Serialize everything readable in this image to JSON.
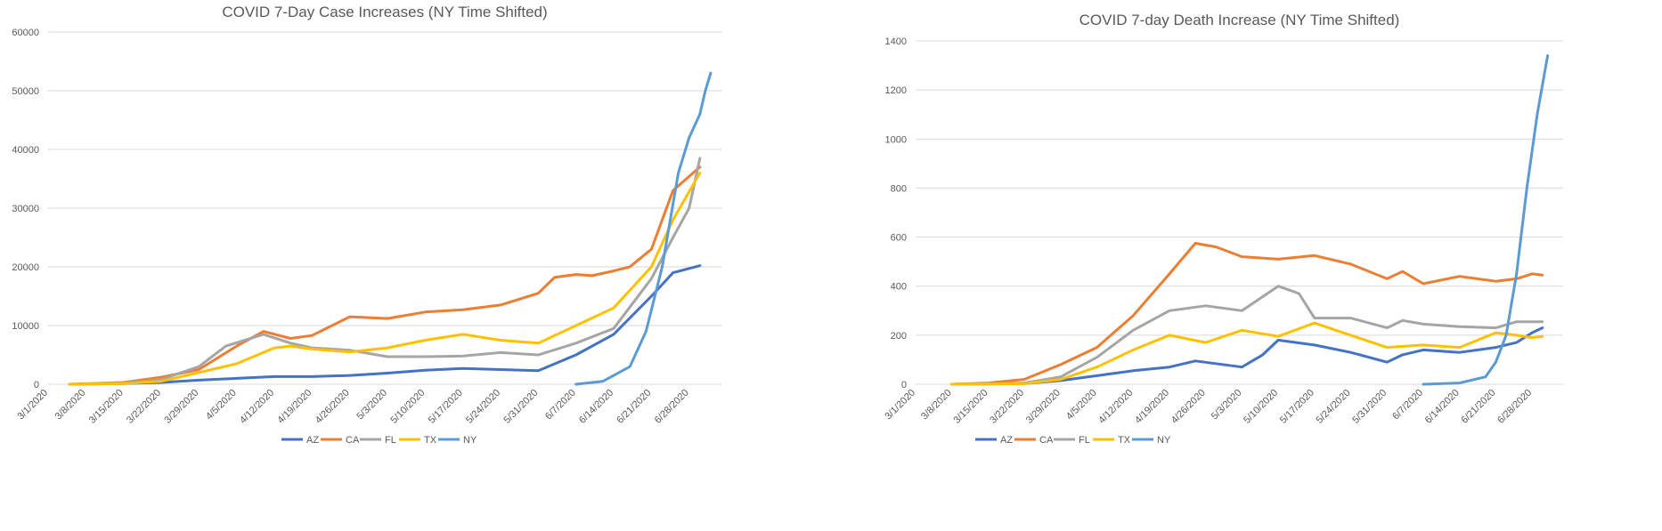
{
  "chart_data": [
    {
      "type": "line",
      "title": "COVID 7-Day Case Increases (NY Time Shifted)",
      "xlabel": "",
      "ylabel": "",
      "ylim": [
        0,
        60000
      ],
      "yticks": [
        0,
        10000,
        20000,
        30000,
        40000,
        50000,
        60000
      ],
      "x_tick_labels": [
        "3/1/2020",
        "3/8/2020",
        "3/15/2020",
        "3/22/2020",
        "3/29/2020",
        "4/5/2020",
        "4/12/2020",
        "4/19/2020",
        "4/26/2020",
        "5/3/2020",
        "5/10/2020",
        "5/17/2020",
        "5/24/2020",
        "5/31/2020",
        "6/7/2020",
        "6/14/2020",
        "6/21/2020",
        "6/28/2020"
      ],
      "grid": true,
      "legend": "bottom",
      "series": [
        {
          "name": "AZ",
          "color": "#4472C4",
          "points": [
            [
              "3/5/2020",
              0
            ],
            [
              "3/15/2020",
              100
            ],
            [
              "3/22/2020",
              300
            ],
            [
              "3/29/2020",
              700
            ],
            [
              "4/5/2020",
              1000
            ],
            [
              "4/12/2020",
              1300
            ],
            [
              "4/19/2020",
              1300
            ],
            [
              "4/26/2020",
              1500
            ],
            [
              "5/3/2020",
              1900
            ],
            [
              "5/10/2020",
              2400
            ],
            [
              "5/17/2020",
              2700
            ],
            [
              "5/24/2020",
              2500
            ],
            [
              "5/31/2020",
              2300
            ],
            [
              "6/7/2020",
              5000
            ],
            [
              "6/14/2020",
              8500
            ],
            [
              "6/21/2020",
              15000
            ],
            [
              "6/25/2020",
              19000
            ],
            [
              "6/30/2020",
              20200
            ]
          ]
        },
        {
          "name": "CA",
          "color": "#ED7D31",
          "points": [
            [
              "3/5/2020",
              0
            ],
            [
              "3/15/2020",
              300
            ],
            [
              "3/22/2020",
              1200
            ],
            [
              "3/29/2020",
              2500
            ],
            [
              "4/5/2020",
              6500
            ],
            [
              "4/10/2020",
              9000
            ],
            [
              "4/15/2020",
              7800
            ],
            [
              "4/19/2020",
              8300
            ],
            [
              "4/26/2020",
              11500
            ],
            [
              "5/3/2020",
              11200
            ],
            [
              "5/10/2020",
              12300
            ],
            [
              "5/17/2020",
              12700
            ],
            [
              "5/24/2020",
              13500
            ],
            [
              "5/31/2020",
              15500
            ],
            [
              "6/3/2020",
              18200
            ],
            [
              "6/7/2020",
              18700
            ],
            [
              "6/10/2020",
              18500
            ],
            [
              "6/14/2020",
              19300
            ],
            [
              "6/17/2020",
              20000
            ],
            [
              "6/21/2020",
              23000
            ],
            [
              "6/25/2020",
              33000
            ],
            [
              "6/30/2020",
              37000
            ]
          ]
        },
        {
          "name": "FL",
          "color": "#A5A5A5",
          "points": [
            [
              "3/5/2020",
              0
            ],
            [
              "3/15/2020",
              200
            ],
            [
              "3/22/2020",
              800
            ],
            [
              "3/29/2020",
              3000
            ],
            [
              "4/3/2020",
              6500
            ],
            [
              "4/10/2020",
              8500
            ],
            [
              "4/15/2020",
              7000
            ],
            [
              "4/19/2020",
              6200
            ],
            [
              "4/26/2020",
              5800
            ],
            [
              "5/3/2020",
              4700
            ],
            [
              "5/10/2020",
              4700
            ],
            [
              "5/17/2020",
              4800
            ],
            [
              "5/24/2020",
              5400
            ],
            [
              "5/31/2020",
              5000
            ],
            [
              "6/7/2020",
              7000
            ],
            [
              "6/14/2020",
              9500
            ],
            [
              "6/21/2020",
              18000
            ],
            [
              "6/25/2020",
              25000
            ],
            [
              "6/28/2020",
              30000
            ],
            [
              "6/30/2020",
              38500
            ]
          ]
        },
        {
          "name": "TX",
          "color": "#FFC000",
          "points": [
            [
              "3/5/2020",
              0
            ],
            [
              "3/15/2020",
              100
            ],
            [
              "3/22/2020",
              500
            ],
            [
              "3/29/2020",
              2000
            ],
            [
              "4/5/2020",
              3500
            ],
            [
              "4/12/2020",
              6200
            ],
            [
              "4/15/2020",
              6500
            ],
            [
              "4/19/2020",
              6000
            ],
            [
              "4/26/2020",
              5500
            ],
            [
              "5/3/2020",
              6200
            ],
            [
              "5/10/2020",
              7500
            ],
            [
              "5/17/2020",
              8500
            ],
            [
              "5/24/2020",
              7500
            ],
            [
              "5/31/2020",
              7000
            ],
            [
              "6/7/2020",
              10000
            ],
            [
              "6/14/2020",
              13000
            ],
            [
              "6/21/2020",
              20000
            ],
            [
              "6/25/2020",
              28000
            ],
            [
              "6/30/2020",
              36000
            ]
          ]
        },
        {
          "name": "NY",
          "color": "#5B9BD5",
          "points": [
            [
              "6/7/2020",
              0
            ],
            [
              "6/12/2020",
              500
            ],
            [
              "6/17/2020",
              3000
            ],
            [
              "6/20/2020",
              9000
            ],
            [
              "6/23/2020",
              20000
            ],
            [
              "6/26/2020",
              36000
            ],
            [
              "6/28/2020",
              42000
            ],
            [
              "6/30/2020",
              46000
            ],
            [
              "7/1/2020",
              50000
            ],
            [
              "7/2/2020",
              53000
            ]
          ]
        }
      ]
    },
    {
      "type": "line",
      "title": "COVID 7-day Death Increase (NY Time Shifted)",
      "xlabel": "",
      "ylabel": "",
      "ylim": [
        0,
        1400
      ],
      "yticks": [
        0,
        200,
        400,
        600,
        800,
        1000,
        1200,
        1400
      ],
      "x_tick_labels": [
        "3/1/2020",
        "3/8/2020",
        "3/15/2020",
        "3/22/2020",
        "3/29/2020",
        "4/5/2020",
        "4/12/2020",
        "4/19/2020",
        "4/26/2020",
        "5/3/2020",
        "5/10/2020",
        "5/17/2020",
        "5/24/2020",
        "5/31/2020",
        "6/7/2020",
        "6/14/2020",
        "6/21/2020",
        "6/28/2020"
      ],
      "grid": true,
      "legend": "bottom",
      "series": [
        {
          "name": "AZ",
          "color": "#4472C4",
          "points": [
            [
              "3/8/2020",
              0
            ],
            [
              "3/22/2020",
              3
            ],
            [
              "3/29/2020",
              15
            ],
            [
              "4/5/2020",
              35
            ],
            [
              "4/12/2020",
              55
            ],
            [
              "4/19/2020",
              70
            ],
            [
              "4/24/2020",
              95
            ],
            [
              "5/3/2020",
              70
            ],
            [
              "5/7/2020",
              120
            ],
            [
              "5/10/2020",
              180
            ],
            [
              "5/17/2020",
              160
            ],
            [
              "5/24/2020",
              130
            ],
            [
              "5/31/2020",
              90
            ],
            [
              "6/3/2020",
              120
            ],
            [
              "6/7/2020",
              140
            ],
            [
              "6/14/2020",
              130
            ],
            [
              "6/21/2020",
              150
            ],
            [
              "6/25/2020",
              170
            ],
            [
              "6/28/2020",
              210
            ],
            [
              "6/30/2020",
              230
            ]
          ]
        },
        {
          "name": "CA",
          "color": "#ED7D31",
          "points": [
            [
              "3/8/2020",
              0
            ],
            [
              "3/15/2020",
              5
            ],
            [
              "3/22/2020",
              20
            ],
            [
              "3/29/2020",
              80
            ],
            [
              "4/5/2020",
              150
            ],
            [
              "4/12/2020",
              280
            ],
            [
              "4/19/2020",
              450
            ],
            [
              "4/24/2020",
              575
            ],
            [
              "4/28/2020",
              560
            ],
            [
              "5/3/2020",
              520
            ],
            [
              "5/10/2020",
              510
            ],
            [
              "5/17/2020",
              525
            ],
            [
              "5/24/2020",
              490
            ],
            [
              "5/31/2020",
              430
            ],
            [
              "6/3/2020",
              460
            ],
            [
              "6/7/2020",
              410
            ],
            [
              "6/14/2020",
              440
            ],
            [
              "6/21/2020",
              420
            ],
            [
              "6/25/2020",
              430
            ],
            [
              "6/28/2020",
              450
            ],
            [
              "6/30/2020",
              445
            ]
          ]
        },
        {
          "name": "FL",
          "color": "#A5A5A5",
          "points": [
            [
              "3/8/2020",
              0
            ],
            [
              "3/22/2020",
              5
            ],
            [
              "3/29/2020",
              30
            ],
            [
              "4/5/2020",
              110
            ],
            [
              "4/12/2020",
              220
            ],
            [
              "4/19/2020",
              300
            ],
            [
              "4/26/2020",
              320
            ],
            [
              "5/3/2020",
              300
            ],
            [
              "5/10/2020",
              400
            ],
            [
              "5/14/2020",
              370
            ],
            [
              "5/17/2020",
              270
            ],
            [
              "5/24/2020",
              270
            ],
            [
              "5/31/2020",
              230
            ],
            [
              "6/3/2020",
              260
            ],
            [
              "6/7/2020",
              245
            ],
            [
              "6/14/2020",
              235
            ],
            [
              "6/21/2020",
              230
            ],
            [
              "6/25/2020",
              255
            ],
            [
              "6/30/2020",
              255
            ]
          ]
        },
        {
          "name": "TX",
          "color": "#FFC000",
          "points": [
            [
              "3/8/2020",
              0
            ],
            [
              "3/22/2020",
              2
            ],
            [
              "3/29/2020",
              20
            ],
            [
              "4/5/2020",
              70
            ],
            [
              "4/12/2020",
              140
            ],
            [
              "4/19/2020",
              200
            ],
            [
              "4/26/2020",
              170
            ],
            [
              "5/3/2020",
              220
            ],
            [
              "5/10/2020",
              195
            ],
            [
              "5/17/2020",
              250
            ],
            [
              "5/24/2020",
              200
            ],
            [
              "5/31/2020",
              150
            ],
            [
              "6/7/2020",
              160
            ],
            [
              "6/14/2020",
              150
            ],
            [
              "6/21/2020",
              210
            ],
            [
              "6/25/2020",
              200
            ],
            [
              "6/28/2020",
              190
            ],
            [
              "6/30/2020",
              195
            ]
          ]
        },
        {
          "name": "NY",
          "color": "#5B9BD5",
          "points": [
            [
              "6/7/2020",
              0
            ],
            [
              "6/14/2020",
              5
            ],
            [
              "6/19/2020",
              30
            ],
            [
              "6/21/2020",
              90
            ],
            [
              "6/23/2020",
              200
            ],
            [
              "6/25/2020",
              450
            ],
            [
              "6/27/2020",
              800
            ],
            [
              "6/29/2020",
              1100
            ],
            [
              "7/1/2020",
              1340
            ]
          ]
        }
      ]
    }
  ]
}
